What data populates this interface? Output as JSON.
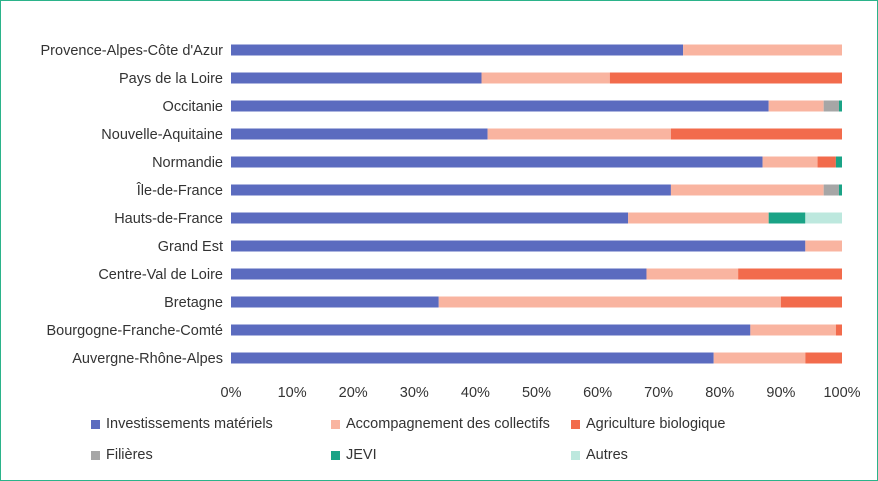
{
  "chart_data": {
    "type": "bar",
    "orientation": "horizontal",
    "stacked": "percent",
    "title": "",
    "xlabel": "",
    "ylabel": "",
    "xlim": [
      0,
      100
    ],
    "x_ticks": [
      "0%",
      "10%",
      "20%",
      "30%",
      "40%",
      "50%",
      "60%",
      "70%",
      "80%",
      "90%",
      "100%"
    ],
    "grid": false,
    "legend_position": "bottom",
    "categories": [
      "Provence-Alpes-Côte d'Azur",
      "Pays de la Loire",
      "Occitanie",
      "Nouvelle-Aquitaine",
      "Normandie",
      "Île-de-France",
      "Hauts-de-France",
      "Grand Est",
      "Centre-Val de Loire",
      "Bretagne",
      "Bourgogne-Franche-Comté",
      "Auvergne-Rhône-Alpes"
    ],
    "series": [
      {
        "name": "Investissements matériels",
        "color": "#5b6bbf",
        "values": [
          74,
          41,
          88,
          42,
          87,
          72,
          65,
          94,
          68,
          34,
          85,
          79
        ]
      },
      {
        "name": "Accompagnement des collectifs",
        "color": "#f9b4a0",
        "values": [
          26,
          21,
          9,
          30,
          9,
          25,
          23,
          6,
          15,
          56,
          14,
          15
        ]
      },
      {
        "name": "Agriculture biologique",
        "color": "#f26b4c",
        "values": [
          0,
          38,
          0,
          28,
          3,
          0,
          0,
          0,
          17,
          10,
          1,
          6
        ]
      },
      {
        "name": "Filières",
        "color": "#a6a6a6",
        "values": [
          0,
          0,
          2.5,
          0,
          0,
          2.5,
          0,
          0,
          0,
          0,
          0,
          0
        ]
      },
      {
        "name": "JEVI",
        "color": "#1aa386",
        "values": [
          0,
          0,
          0.5,
          0,
          1,
          0.5,
          6,
          0,
          0,
          0,
          0,
          0
        ]
      },
      {
        "name": "Autres",
        "color": "#bde8de",
        "values": [
          0,
          0,
          0,
          0,
          0,
          0,
          6,
          0,
          0,
          0,
          0,
          0
        ]
      }
    ]
  }
}
